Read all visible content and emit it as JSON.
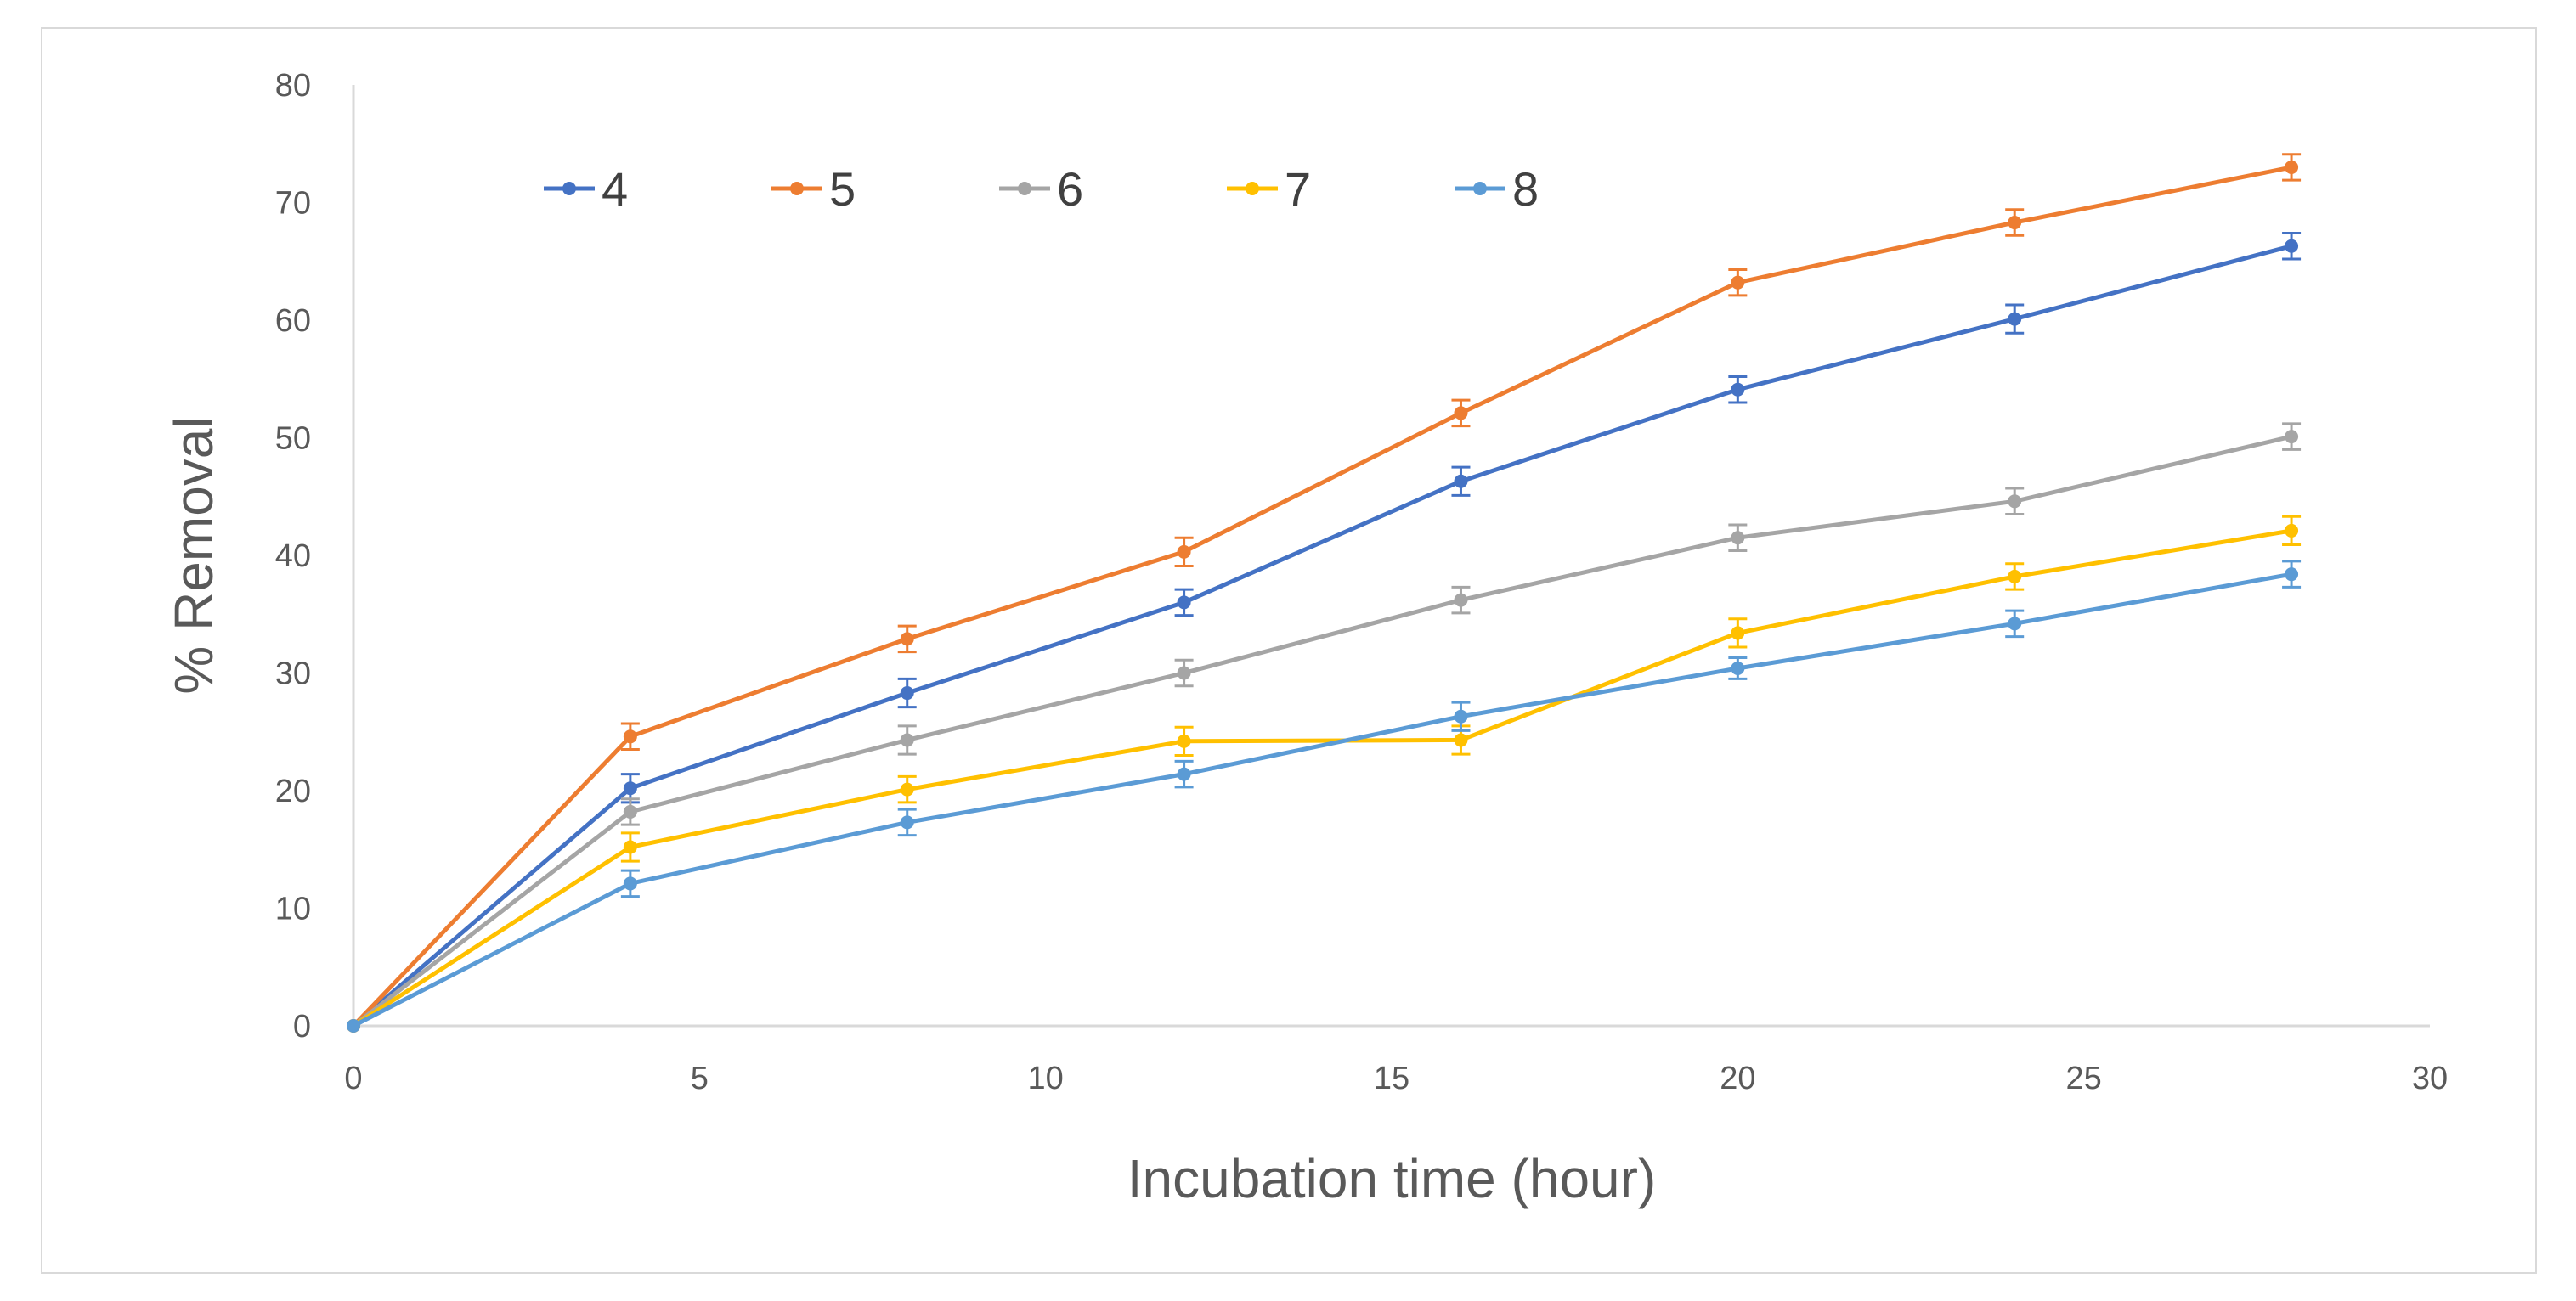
{
  "chart_data": {
    "type": "line",
    "title": "",
    "xlabel": "Incubation time (hour)",
    "ylabel": "% Removal",
    "xlim": [
      0,
      30
    ],
    "ylim": [
      0,
      80
    ],
    "xticks": [
      0,
      5,
      10,
      15,
      20,
      25,
      30
    ],
    "yticks": [
      0,
      10,
      20,
      30,
      40,
      50,
      60,
      70,
      80
    ],
    "grid": false,
    "legend": "top-left",
    "x": [
      0,
      4,
      8,
      12,
      16,
      20,
      24,
      28
    ],
    "series": [
      {
        "name": "4",
        "color": "#4472c4",
        "values": [
          0,
          20.2,
          28.3,
          36.0,
          46.3,
          54.1,
          60.1,
          66.3
        ],
        "errors": [
          0,
          1.2,
          1.2,
          1.1,
          1.2,
          1.1,
          1.2,
          1.1
        ]
      },
      {
        "name": "5",
        "color": "#ed7d31",
        "values": [
          0,
          24.6,
          32.9,
          40.3,
          52.1,
          63.2,
          68.3,
          73.0
        ],
        "errors": [
          0,
          1.1,
          1.1,
          1.2,
          1.1,
          1.1,
          1.1,
          1.1
        ]
      },
      {
        "name": "6",
        "color": "#a5a5a5",
        "values": [
          0,
          18.2,
          24.3,
          30.0,
          36.2,
          41.5,
          44.6,
          50.1
        ],
        "errors": [
          0,
          1.1,
          1.2,
          1.1,
          1.1,
          1.1,
          1.1,
          1.1
        ]
      },
      {
        "name": "7",
        "color": "#ffc000",
        "values": [
          0,
          15.2,
          20.1,
          24.2,
          24.3,
          33.4,
          38.2,
          42.1
        ],
        "errors": [
          0,
          1.2,
          1.1,
          1.2,
          1.2,
          1.2,
          1.1,
          1.2
        ]
      },
      {
        "name": "8",
        "color": "#5b9bd5",
        "values": [
          0,
          12.1,
          17.3,
          21.4,
          26.3,
          30.4,
          34.2,
          38.4
        ],
        "errors": [
          0,
          1.1,
          1.1,
          1.1,
          1.2,
          0.9,
          1.1,
          1.1
        ]
      }
    ]
  }
}
